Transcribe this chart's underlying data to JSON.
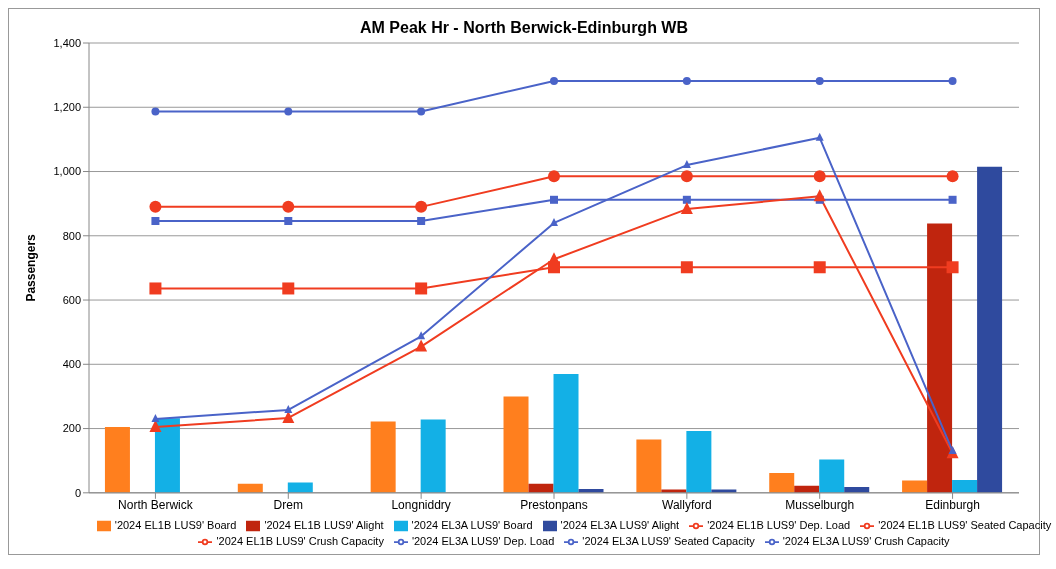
{
  "chart_data": {
    "type": "bar",
    "title": "AM Peak Hr - North Berwick-Edinburgh WB",
    "ylabel": "Passengers",
    "categories": [
      "North Berwick",
      "Drem",
      "Longniddry",
      "Prestonpans",
      "Wallyford",
      "Musselburgh",
      "Edinburgh"
    ],
    "series": [
      {
        "name": "'2024 EL1B LUS9' Board",
        "color": "#ff7f1e",
        "values": [
          205,
          28,
          222,
          300,
          166,
          62,
          38
        ]
      },
      {
        "name": "'2024 EL1B LUS9' Alight",
        "color": "#c0250e",
        "values": [
          0,
          0,
          0,
          28,
          10,
          22,
          838
        ]
      },
      {
        "name": "'2024 EL3A LUS9' Board",
        "color": "#13b0e6",
        "values": [
          232,
          32,
          228,
          370,
          192,
          104,
          40
        ]
      },
      {
        "name": "'2024 EL3A LUS9' Alight",
        "color": "#2f4a9e",
        "values": [
          0,
          0,
          0,
          12,
          10,
          18,
          1015
        ]
      },
      {
        "name": "'2024 EL1B LUS9' Dep. Load",
        "type": "line",
        "marker": "triangle",
        "color": "#f03c20",
        "values": [
          205,
          233,
          455,
          727,
          883,
          923,
          123
        ]
      },
      {
        "name": "'2024 EL1B LUS9' Seated Capacity",
        "type": "line",
        "marker": "square",
        "color": "#f03c20",
        "values": [
          636,
          636,
          636,
          702,
          702,
          702,
          702
        ]
      },
      {
        "name": "'2024 EL1B LUS9' Crush Capacity",
        "type": "line",
        "marker": "circle",
        "color": "#f03c20",
        "values": [
          890,
          890,
          890,
          985,
          985,
          985,
          985
        ]
      },
      {
        "name": "'2024 EL3A LUS9' Dep. Load",
        "type": "line",
        "marker": "triangle",
        "color": "#4a63c8",
        "values": [
          230,
          258,
          487,
          840,
          1020,
          1105,
          130
        ]
      },
      {
        "name": "'2024 EL3A LUS9' Seated Capacity",
        "type": "line",
        "marker": "square",
        "color": "#4a63c8",
        "values": [
          846,
          846,
          846,
          912,
          912,
          912,
          912
        ]
      },
      {
        "name": "'2024 EL3A LUS9' Crush Capacity",
        "type": "line",
        "marker": "circle",
        "color": "#4a63c8",
        "values": [
          1187,
          1187,
          1187,
          1282,
          1282,
          1282,
          1282
        ]
      }
    ],
    "ylim": [
      0,
      1400
    ],
    "yticks": [
      0,
      200,
      400,
      600,
      800,
      {
        "value": 1000,
        "label": "1,000"
      },
      {
        "value": 1200,
        "label": "1,200"
      },
      {
        "value": 1400,
        "label": "1,400"
      }
    ],
    "grid": "y",
    "legend": "bottom"
  }
}
